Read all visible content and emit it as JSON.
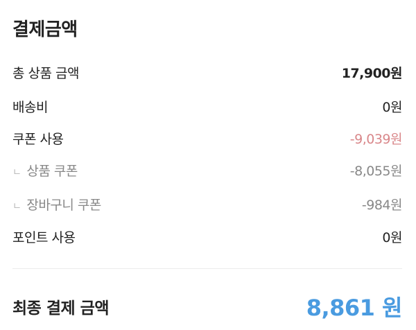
{
  "title": "결제금액",
  "rows": [
    {
      "label": "총 상품 금액",
      "value": "17,900원"
    },
    {
      "label": "배송비",
      "value": "0원"
    },
    {
      "label": "쿠폰 사용",
      "value": "-9,039원"
    },
    {
      "label": "상품 쿠폰",
      "value": "-8,055원"
    },
    {
      "label": "장바구니 쿠폰",
      "value": "-984원"
    },
    {
      "label": "포인트 사용",
      "value": "0원"
    }
  ],
  "sub_marker": "ㄴ",
  "final": {
    "label": "최종 결제 금액",
    "value": "8,861 원"
  },
  "colors": {
    "accent": "#4a9be0",
    "discount": "#d9878a",
    "sub_text": "#888888"
  }
}
